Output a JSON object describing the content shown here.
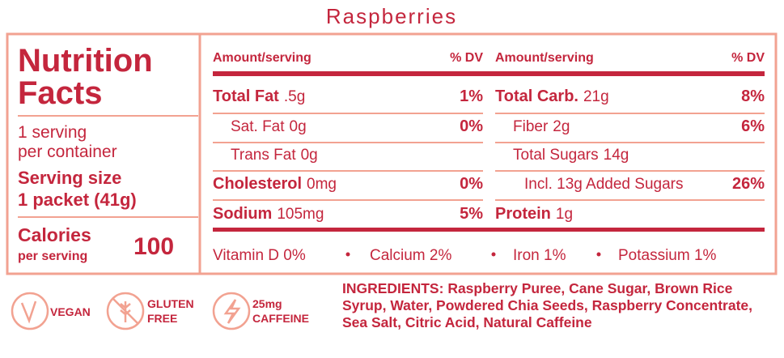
{
  "title": "Raspberries",
  "panel": {
    "heading": [
      "Nutrition",
      "Facts"
    ],
    "servings": [
      "1 serving",
      "per container"
    ],
    "serving_size": [
      "Serving size",
      "1 packet (41g)"
    ],
    "calories": {
      "label": "Calories",
      "sublabel": "per serving",
      "value": "100"
    }
  },
  "columns": [
    {
      "header": [
        "Amount/serving",
        "% DV"
      ],
      "rows": [
        {
          "name": "Total Fat",
          "amount": ".5g",
          "dv": "1%",
          "bold": true,
          "level": 0
        },
        {
          "name": "Sat. Fat",
          "amount": "0g",
          "dv": "0%",
          "bold": false,
          "level": 1
        },
        {
          "name": "Trans Fat",
          "amount": "0g",
          "bold": false,
          "level": 1
        },
        {
          "name": "Cholesterol",
          "amount": "0mg",
          "dv": "0%",
          "bold": true,
          "level": 0
        },
        {
          "name": "Sodium",
          "amount": "105mg",
          "dv": "5%",
          "bold": true,
          "level": 0
        }
      ]
    },
    {
      "header": [
        "Amount/serving",
        "% DV"
      ],
      "rows": [
        {
          "name": "Total Carb.",
          "amount": "21g",
          "dv": "8%",
          "bold": true,
          "level": 0
        },
        {
          "name": "Fiber",
          "amount": "2g",
          "dv": "6%",
          "bold": false,
          "level": 1
        },
        {
          "name": "Total Sugars",
          "amount": "14g",
          "bold": false,
          "level": 1
        },
        {
          "name": "Incl. 13g Added Sugars",
          "dv": "26%",
          "bold": false,
          "level": 2
        },
        {
          "name": "Protein",
          "amount": "1g",
          "bold": true,
          "level": 0
        }
      ]
    }
  ],
  "vitamins": [
    "Vitamin D 0%",
    "Calcium 2%",
    "Iron 1%",
    "Potassium 1%"
  ],
  "badges": [
    {
      "lines": [
        "VEGAN"
      ]
    },
    {
      "lines": [
        "GLUTEN",
        "FREE"
      ]
    },
    {
      "lines": [
        "25mg",
        "CAFFEINE"
      ]
    }
  ],
  "ingredients": {
    "label": "INGREDIENTS:",
    "text": "Raspberry Puree, Cane Sugar, Brown Rice Syrup, Water, Powdered Chia Seeds, Raspberry Concentrate, Sea Salt, Citric Acid, Natural Caffeine"
  }
}
